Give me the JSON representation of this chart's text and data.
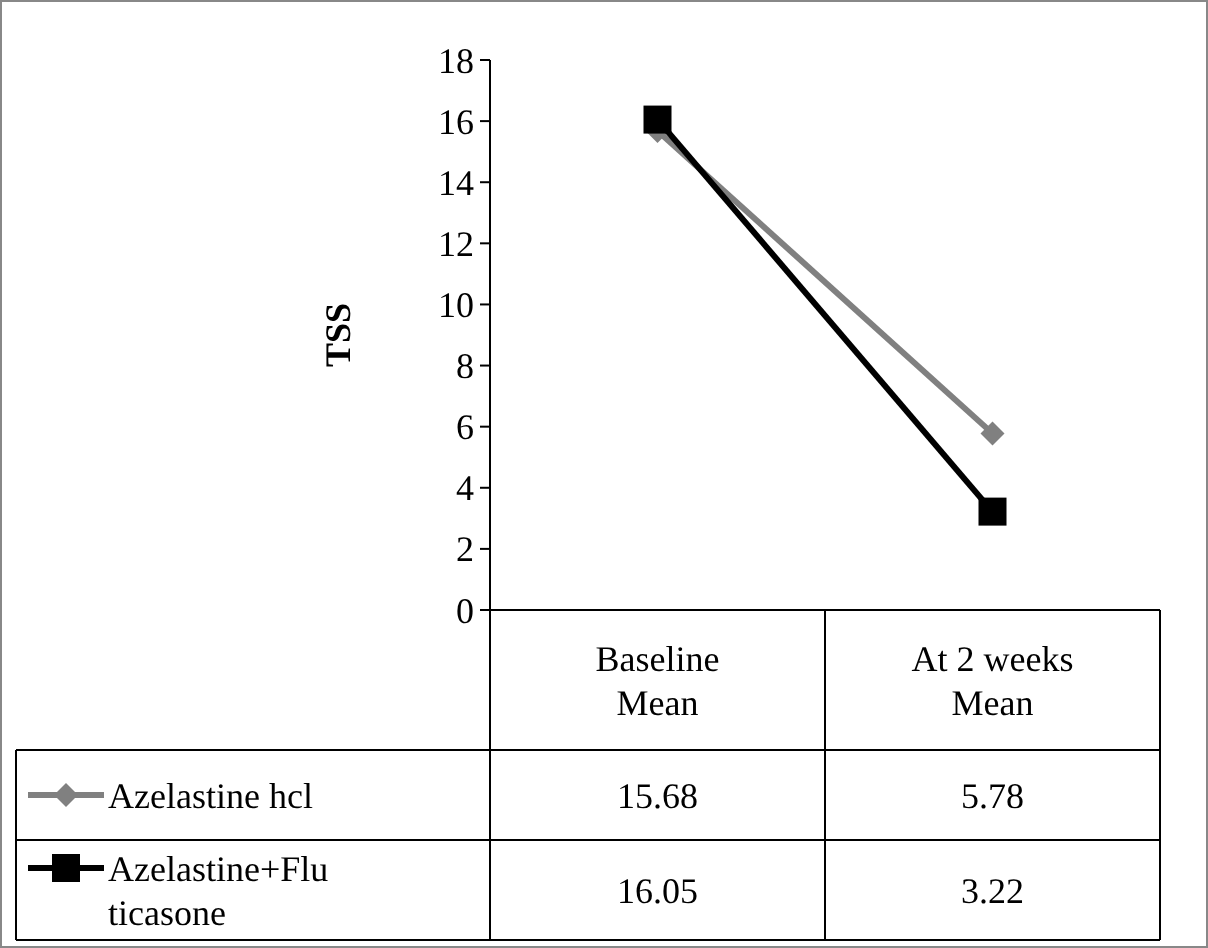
{
  "chart_data": {
    "type": "line",
    "ylabel": "TSS",
    "categories": [
      "Baseline Mean",
      "At 2 weeks Mean"
    ],
    "ylim": [
      0,
      18
    ],
    "yticks": [
      0,
      2,
      4,
      6,
      8,
      10,
      12,
      14,
      16,
      18
    ],
    "grid": false,
    "legend": "bottom",
    "data_labels": true,
    "series": [
      {
        "name": "Azelastine hcl",
        "color": "#808080",
        "marker": "diamond",
        "values": [
          15.68,
          5.78
        ]
      },
      {
        "name": "Azelastine+Fluticasone",
        "color": "#000000",
        "marker": "square",
        "values": [
          16.05,
          3.22
        ]
      }
    ]
  }
}
